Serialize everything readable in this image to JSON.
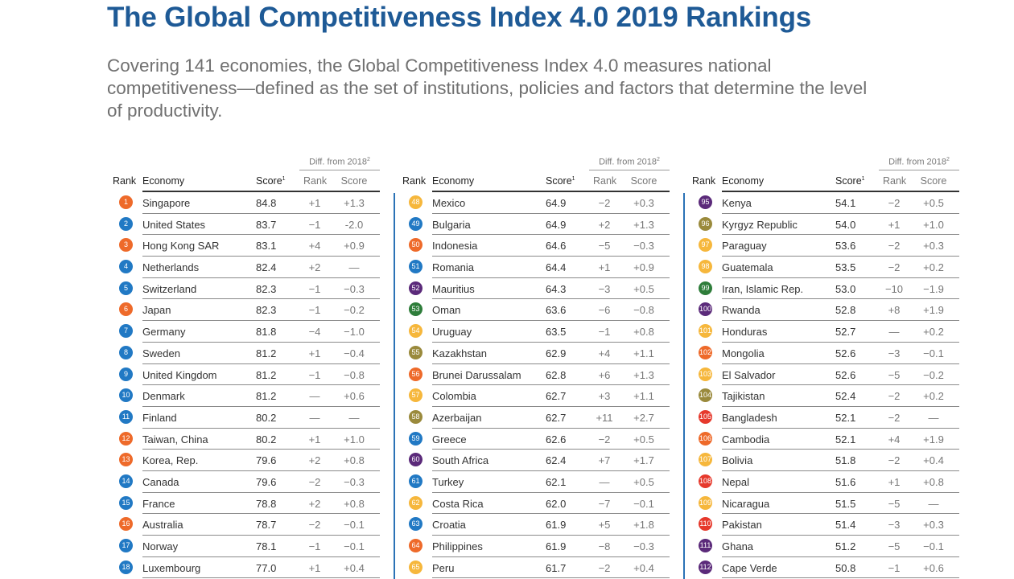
{
  "title": "The Global Competitiveness Index 4.0 2019 Rankings",
  "intro": "Covering 141 economies, the Global Competitiveness Index 4.0 measures national competitiveness—defined as the set of institutions, policies and factors that determine the level of productivity.",
  "headers": {
    "diff_from": "Diff. from 2018",
    "diff_note": "2",
    "rank": "Rank",
    "economy": "Economy",
    "score": "Score",
    "score_note": "1",
    "diff_rank": "Rank",
    "diff_score": "Score"
  },
  "colors": {
    "title": "#1e5a96",
    "divider": "#2b72b6",
    "blue": "#2179c4",
    "orange": "#ee6a2a",
    "yellow": "#f6b73c",
    "purple": "#5b2a7a",
    "olive": "#9a8a3c",
    "green": "#2e7d3a",
    "red": "#e6392c"
  },
  "columns": [
    {
      "rows": [
        {
          "rank": "1",
          "color": "orange",
          "economy": "Singapore",
          "score": "84.8",
          "diff_rank": "+1",
          "diff_score": "+1.3"
        },
        {
          "rank": "2",
          "color": "blue",
          "economy": "United States",
          "score": "83.7",
          "diff_rank": "−1",
          "diff_score": "-2.0"
        },
        {
          "rank": "3",
          "color": "orange",
          "economy": "Hong Kong SAR",
          "score": "83.1",
          "diff_rank": "+4",
          "diff_score": "+0.9"
        },
        {
          "rank": "4",
          "color": "blue",
          "economy": "Netherlands",
          "score": "82.4",
          "diff_rank": "+2",
          "diff_score": "—"
        },
        {
          "rank": "5",
          "color": "blue",
          "economy": "Switzerland",
          "score": "82.3",
          "diff_rank": "−1",
          "diff_score": "−0.3"
        },
        {
          "rank": "6",
          "color": "orange",
          "economy": "Japan",
          "score": "82.3",
          "diff_rank": "−1",
          "diff_score": "−0.2"
        },
        {
          "rank": "7",
          "color": "blue",
          "economy": "Germany",
          "score": "81.8",
          "diff_rank": "−4",
          "diff_score": "−1.0"
        },
        {
          "rank": "8",
          "color": "blue",
          "economy": "Sweden",
          "score": "81.2",
          "diff_rank": "+1",
          "diff_score": "−0.4"
        },
        {
          "rank": "9",
          "color": "blue",
          "economy": "United Kingdom",
          "score": "81.2",
          "diff_rank": "−1",
          "diff_score": "−0.8"
        },
        {
          "rank": "10",
          "color": "blue",
          "economy": "Denmark",
          "score": "81.2",
          "diff_rank": "—",
          "diff_score": "+0.6"
        },
        {
          "rank": "11",
          "color": "blue",
          "economy": "Finland",
          "score": "80.2",
          "diff_rank": "—",
          "diff_score": "—"
        },
        {
          "rank": "12",
          "color": "orange",
          "economy": "Taiwan, China",
          "score": "80.2",
          "diff_rank": "+1",
          "diff_score": "+1.0"
        },
        {
          "rank": "13",
          "color": "orange",
          "economy": "Korea, Rep.",
          "score": "79.6",
          "diff_rank": "+2",
          "diff_score": "+0.8"
        },
        {
          "rank": "14",
          "color": "blue",
          "economy": "Canada",
          "score": "79.6",
          "diff_rank": "−2",
          "diff_score": "−0.3"
        },
        {
          "rank": "15",
          "color": "blue",
          "economy": "France",
          "score": "78.8",
          "diff_rank": "+2",
          "diff_score": "+0.8"
        },
        {
          "rank": "16",
          "color": "orange",
          "economy": "Australia",
          "score": "78.7",
          "diff_rank": "−2",
          "diff_score": "−0.1"
        },
        {
          "rank": "17",
          "color": "blue",
          "economy": "Norway",
          "score": "78.1",
          "diff_rank": "−1",
          "diff_score": "−0.1"
        },
        {
          "rank": "18",
          "color": "blue",
          "economy": "Luxembourg",
          "score": "77.0",
          "diff_rank": "+1",
          "diff_score": "+0.4"
        }
      ]
    },
    {
      "rows": [
        {
          "rank": "48",
          "color": "yellow",
          "economy": "Mexico",
          "score": "64.9",
          "diff_rank": "−2",
          "diff_score": "+0.3"
        },
        {
          "rank": "49",
          "color": "blue",
          "economy": "Bulgaria",
          "score": "64.9",
          "diff_rank": "+2",
          "diff_score": "+1.3"
        },
        {
          "rank": "50",
          "color": "orange",
          "economy": "Indonesia",
          "score": "64.6",
          "diff_rank": "−5",
          "diff_score": "−0.3"
        },
        {
          "rank": "51",
          "color": "blue",
          "economy": "Romania",
          "score": "64.4",
          "diff_rank": "+1",
          "diff_score": "+0.9"
        },
        {
          "rank": "52",
          "color": "purple",
          "economy": "Mauritius",
          "score": "64.3",
          "diff_rank": "−3",
          "diff_score": "+0.5"
        },
        {
          "rank": "53",
          "color": "green",
          "economy": "Oman",
          "score": "63.6",
          "diff_rank": "−6",
          "diff_score": "−0.8"
        },
        {
          "rank": "54",
          "color": "yellow",
          "economy": "Uruguay",
          "score": "63.5",
          "diff_rank": "−1",
          "diff_score": "+0.8"
        },
        {
          "rank": "55",
          "color": "olive",
          "economy": "Kazakhstan",
          "score": "62.9",
          "diff_rank": "+4",
          "diff_score": "+1.1"
        },
        {
          "rank": "56",
          "color": "orange",
          "economy": "Brunei Darussalam",
          "score": "62.8",
          "diff_rank": "+6",
          "diff_score": "+1.3"
        },
        {
          "rank": "57",
          "color": "yellow",
          "economy": "Colombia",
          "score": "62.7",
          "diff_rank": "+3",
          "diff_score": "+1.1"
        },
        {
          "rank": "58",
          "color": "olive",
          "economy": "Azerbaijan",
          "score": "62.7",
          "diff_rank": "+11",
          "diff_score": "+2.7"
        },
        {
          "rank": "59",
          "color": "blue",
          "economy": "Greece",
          "score": "62.6",
          "diff_rank": "−2",
          "diff_score": "+0.5"
        },
        {
          "rank": "60",
          "color": "purple",
          "economy": "South Africa",
          "score": "62.4",
          "diff_rank": "+7",
          "diff_score": "+1.7"
        },
        {
          "rank": "61",
          "color": "blue",
          "economy": "Turkey",
          "score": "62.1",
          "diff_rank": "—",
          "diff_score": "+0.5"
        },
        {
          "rank": "62",
          "color": "yellow",
          "economy": "Costa Rica",
          "score": "62.0",
          "diff_rank": "−7",
          "diff_score": "−0.1"
        },
        {
          "rank": "63",
          "color": "blue",
          "economy": "Croatia",
          "score": "61.9",
          "diff_rank": "+5",
          "diff_score": "+1.8"
        },
        {
          "rank": "64",
          "color": "orange",
          "economy": "Philippines",
          "score": "61.9",
          "diff_rank": "−8",
          "diff_score": "−0.3"
        },
        {
          "rank": "65",
          "color": "yellow",
          "economy": "Peru",
          "score": "61.7",
          "diff_rank": "−2",
          "diff_score": "+0.4"
        }
      ]
    },
    {
      "rows": [
        {
          "rank": "95",
          "color": "purple",
          "economy": "Kenya",
          "score": "54.1",
          "diff_rank": "−2",
          "diff_score": "+0.5"
        },
        {
          "rank": "96",
          "color": "olive",
          "economy": "Kyrgyz Republic",
          "score": "54.0",
          "diff_rank": "+1",
          "diff_score": "+1.0"
        },
        {
          "rank": "97",
          "color": "yellow",
          "economy": "Paraguay",
          "score": "53.6",
          "diff_rank": "−2",
          "diff_score": "+0.3"
        },
        {
          "rank": "98",
          "color": "yellow",
          "economy": "Guatemala",
          "score": "53.5",
          "diff_rank": "−2",
          "diff_score": "+0.2"
        },
        {
          "rank": "99",
          "color": "green",
          "economy": "Iran, Islamic Rep.",
          "score": "53.0",
          "diff_rank": "−10",
          "diff_score": "−1.9"
        },
        {
          "rank": "100",
          "color": "purple",
          "economy": "Rwanda",
          "score": "52.8",
          "diff_rank": "+8",
          "diff_score": "+1.9"
        },
        {
          "rank": "101",
          "color": "yellow",
          "economy": "Honduras",
          "score": "52.7",
          "diff_rank": "—",
          "diff_score": "+0.2"
        },
        {
          "rank": "102",
          "color": "orange",
          "economy": "Mongolia",
          "score": "52.6",
          "diff_rank": "−3",
          "diff_score": "−0.1"
        },
        {
          "rank": "103",
          "color": "yellow",
          "economy": "El Salvador",
          "score": "52.6",
          "diff_rank": "−5",
          "diff_score": "−0.2"
        },
        {
          "rank": "104",
          "color": "olive",
          "economy": "Tajikistan",
          "score": "52.4",
          "diff_rank": "−2",
          "diff_score": "+0.2"
        },
        {
          "rank": "105",
          "color": "red",
          "economy": "Bangladesh",
          "score": "52.1",
          "diff_rank": "−2",
          "diff_score": "—"
        },
        {
          "rank": "106",
          "color": "orange",
          "economy": "Cambodia",
          "score": "52.1",
          "diff_rank": "+4",
          "diff_score": "+1.9"
        },
        {
          "rank": "107",
          "color": "yellow",
          "economy": "Bolivia",
          "score": "51.8",
          "diff_rank": "−2",
          "diff_score": "+0.4"
        },
        {
          "rank": "108",
          "color": "red",
          "economy": "Nepal",
          "score": "51.6",
          "diff_rank": "+1",
          "diff_score": "+0.8"
        },
        {
          "rank": "109",
          "color": "yellow",
          "economy": "Nicaragua",
          "score": "51.5",
          "diff_rank": "−5",
          "diff_score": "—"
        },
        {
          "rank": "110",
          "color": "red",
          "economy": "Pakistan",
          "score": "51.4",
          "diff_rank": "−3",
          "diff_score": "+0.3"
        },
        {
          "rank": "111",
          "color": "purple",
          "economy": "Ghana",
          "score": "51.2",
          "diff_rank": "−5",
          "diff_score": "−0.1"
        },
        {
          "rank": "112",
          "color": "purple",
          "economy": "Cape Verde",
          "score": "50.8",
          "diff_rank": "−1",
          "diff_score": "+0.6"
        }
      ]
    }
  ]
}
